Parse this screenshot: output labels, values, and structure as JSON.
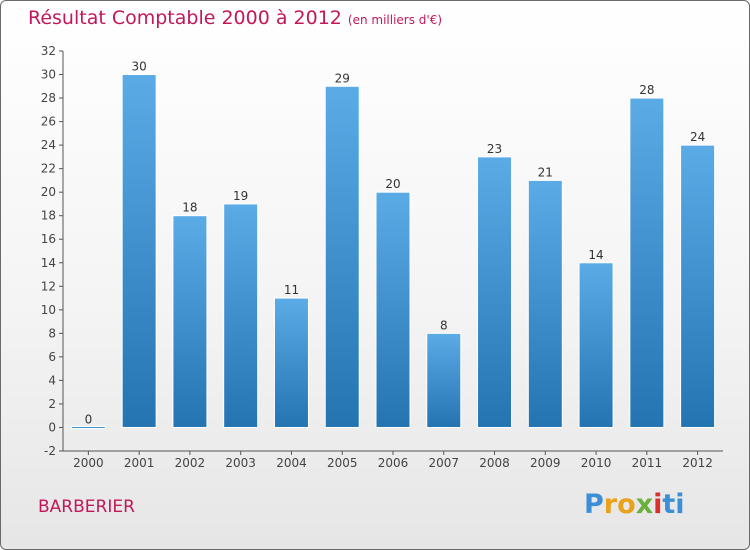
{
  "header": {
    "title": "Résultat Comptable 2000 à 2012",
    "subtitle": "(en milliers d'€)"
  },
  "footer": {
    "commune": "BARBERIER",
    "brand": "Proxiti"
  },
  "colors": {
    "title": "#c2185b",
    "bar_light": "#5aabe6",
    "bar_dark": "#2474b2",
    "axis": "#555555",
    "background_bottom": "#e6e6e6"
  },
  "chart_data": {
    "type": "bar",
    "title": "Résultat Comptable 2000 à 2012",
    "subtitle": "(en milliers d'€)",
    "xlabel": "",
    "ylabel": "",
    "categories": [
      "2000",
      "2001",
      "2002",
      "2003",
      "2004",
      "2005",
      "2006",
      "2007",
      "2008",
      "2009",
      "2010",
      "2011",
      "2012"
    ],
    "values": [
      0,
      30,
      18,
      19,
      11,
      29,
      20,
      8,
      23,
      21,
      14,
      28,
      24
    ],
    "value_labels": [
      "0",
      "30",
      "18",
      "19",
      "11",
      "29",
      "20",
      "8",
      "23",
      "21",
      "14",
      "28",
      "24"
    ],
    "ylim": [
      -2,
      32
    ],
    "yticks": [
      -2,
      0,
      2,
      4,
      6,
      8,
      10,
      12,
      14,
      16,
      18,
      20,
      22,
      24,
      26,
      28,
      30,
      32
    ],
    "grid": false,
    "legend": "none"
  }
}
